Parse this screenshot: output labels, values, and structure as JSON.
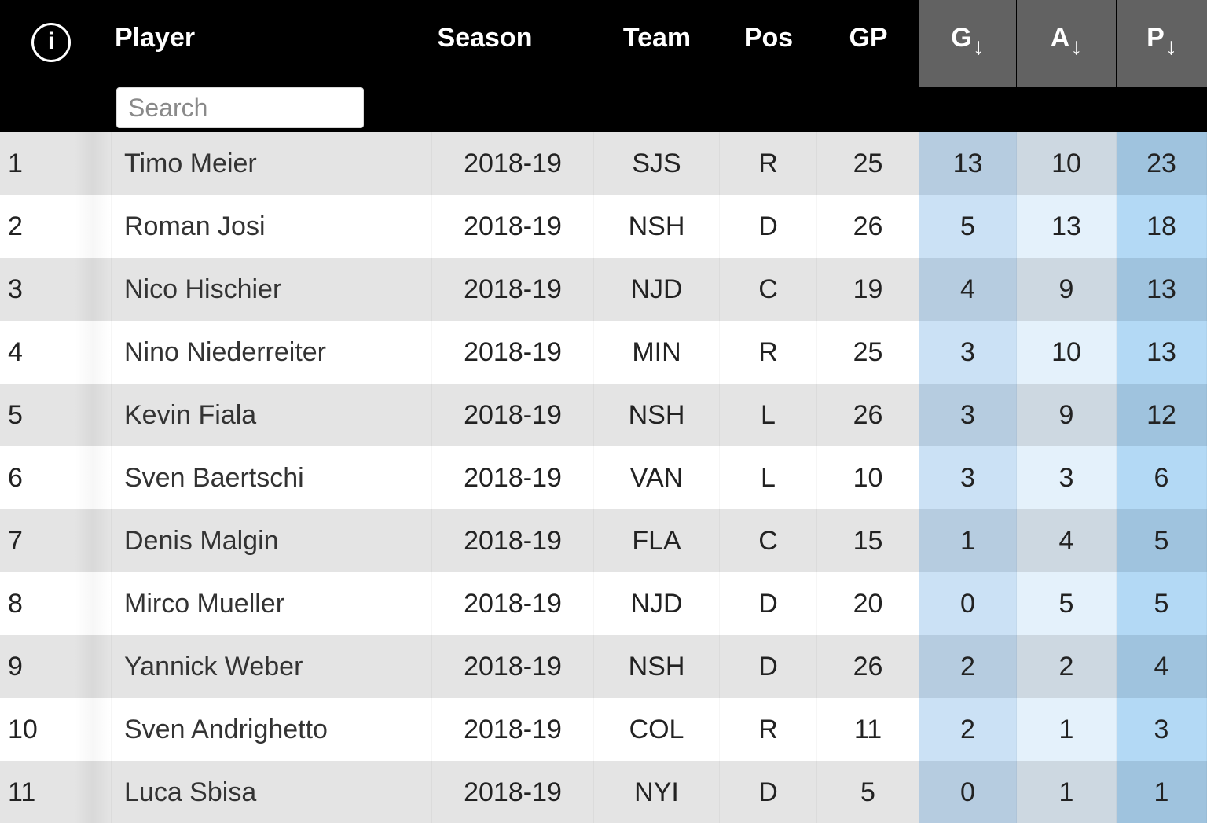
{
  "header": {
    "info_glyph": "i",
    "columns": {
      "player": "Player",
      "season": "Season",
      "team": "Team",
      "pos": "Pos",
      "gp": "GP",
      "g": "G",
      "a": "A",
      "p": "P"
    },
    "sort_arrow": "↓",
    "search": {
      "placeholder": "Search",
      "value": ""
    }
  },
  "colors": {
    "header_bg": "#000000",
    "sorted_header_bg": "#626262",
    "row_even": "#e4e4e4",
    "row_odd": "#ffffff",
    "g_col_even": "#b6cce0",
    "g_col_odd": "#cbe1f5",
    "a_col_even": "#cdd8e1",
    "a_col_odd": "#e4f1fb",
    "p_col_even": "#9fc3de",
    "p_col_odd": "#b3d9f5"
  },
  "rows": [
    {
      "rank": "1",
      "player": "Timo Meier",
      "season": "2018-19",
      "team": "SJS",
      "pos": "R",
      "gp": "25",
      "g": "13",
      "a": "10",
      "p": "23"
    },
    {
      "rank": "2",
      "player": "Roman Josi",
      "season": "2018-19",
      "team": "NSH",
      "pos": "D",
      "gp": "26",
      "g": "5",
      "a": "13",
      "p": "18"
    },
    {
      "rank": "3",
      "player": "Nico Hischier",
      "season": "2018-19",
      "team": "NJD",
      "pos": "C",
      "gp": "19",
      "g": "4",
      "a": "9",
      "p": "13"
    },
    {
      "rank": "4",
      "player": "Nino Niederreiter",
      "season": "2018-19",
      "team": "MIN",
      "pos": "R",
      "gp": "25",
      "g": "3",
      "a": "10",
      "p": "13"
    },
    {
      "rank": "5",
      "player": "Kevin Fiala",
      "season": "2018-19",
      "team": "NSH",
      "pos": "L",
      "gp": "26",
      "g": "3",
      "a": "9",
      "p": "12"
    },
    {
      "rank": "6",
      "player": "Sven Baertschi",
      "season": "2018-19",
      "team": "VAN",
      "pos": "L",
      "gp": "10",
      "g": "3",
      "a": "3",
      "p": "6"
    },
    {
      "rank": "7",
      "player": "Denis Malgin",
      "season": "2018-19",
      "team": "FLA",
      "pos": "C",
      "gp": "15",
      "g": "1",
      "a": "4",
      "p": "5"
    },
    {
      "rank": "8",
      "player": "Mirco Mueller",
      "season": "2018-19",
      "team": "NJD",
      "pos": "D",
      "gp": "20",
      "g": "0",
      "a": "5",
      "p": "5"
    },
    {
      "rank": "9",
      "player": "Yannick Weber",
      "season": "2018-19",
      "team": "NSH",
      "pos": "D",
      "gp": "26",
      "g": "2",
      "a": "2",
      "p": "4"
    },
    {
      "rank": "10",
      "player": "Sven Andrighetto",
      "season": "2018-19",
      "team": "COL",
      "pos": "R",
      "gp": "11",
      "g": "2",
      "a": "1",
      "p": "3"
    },
    {
      "rank": "11",
      "player": "Luca Sbisa",
      "season": "2018-19",
      "team": "NYI",
      "pos": "D",
      "gp": "5",
      "g": "0",
      "a": "1",
      "p": "1"
    }
  ]
}
